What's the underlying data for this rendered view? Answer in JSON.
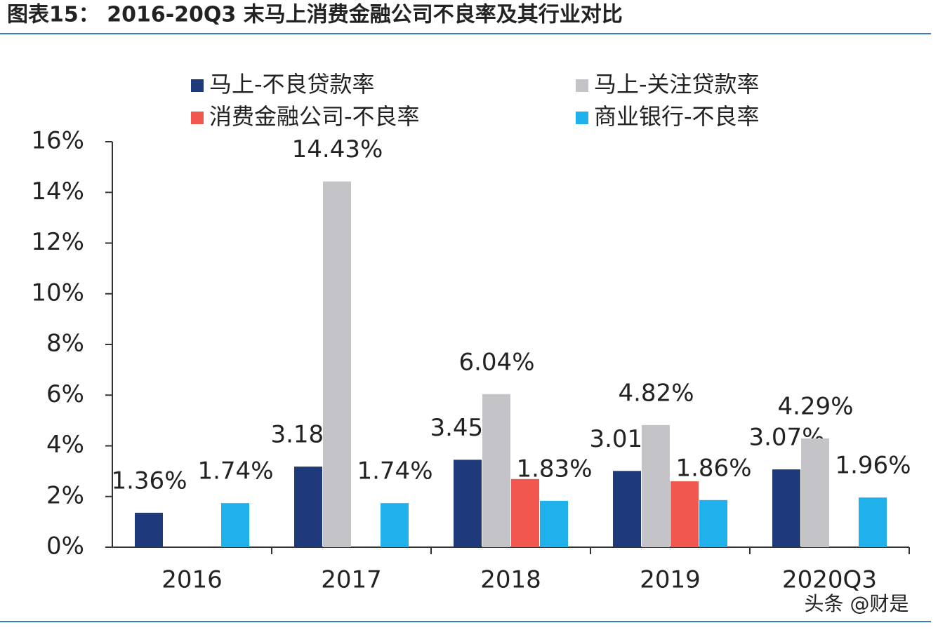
{
  "chart_data": {
    "type": "bar",
    "title": "图表15： 2016-20Q3 末马上消费金融公司不良率及其行业对比",
    "watermark": "头条 @财是",
    "categories": [
      "2016",
      "2017",
      "2018",
      "2019",
      "2020Q3"
    ],
    "series": [
      {
        "name": "马上-不良贷款率",
        "color": "#1e3a7b",
        "values": [
          1.36,
          3.18,
          3.45,
          3.01,
          3.07
        ],
        "value_labels": [
          "1.36%",
          "3.18%",
          "3.45%",
          "3.01%",
          "3.07%"
        ]
      },
      {
        "name": "马上-关注贷款率",
        "color": "#c3c3c8",
        "values": [
          null,
          14.43,
          6.04,
          4.82,
          4.29
        ],
        "value_labels": [
          null,
          "14.43%",
          "6.04%",
          "4.82%",
          "4.29%"
        ]
      },
      {
        "name": "消费金融公司-不良率",
        "color": "#f2574f",
        "values": [
          null,
          null,
          2.69,
          2.6,
          null
        ]
      },
      {
        "name": "商业银行-不良率",
        "color": "#1eb1ec",
        "values": [
          1.74,
          1.74,
          1.83,
          1.86,
          1.96
        ],
        "value_labels": [
          "1.74%",
          "1.74%",
          "1.83%",
          "1.86%",
          "1.96%"
        ]
      }
    ],
    "ylim": [
      0,
      16
    ],
    "yticks": [
      {
        "value": 0,
        "label": "0%"
      },
      {
        "value": 2,
        "label": "2%"
      },
      {
        "value": 4,
        "label": "4%"
      },
      {
        "value": 6,
        "label": "6%"
      },
      {
        "value": 8,
        "label": "8%"
      },
      {
        "value": 10,
        "label": "10%"
      },
      {
        "value": 12,
        "label": "12%"
      },
      {
        "value": 14,
        "label": "14%"
      },
      {
        "value": 16,
        "label": "16%"
      }
    ]
  }
}
